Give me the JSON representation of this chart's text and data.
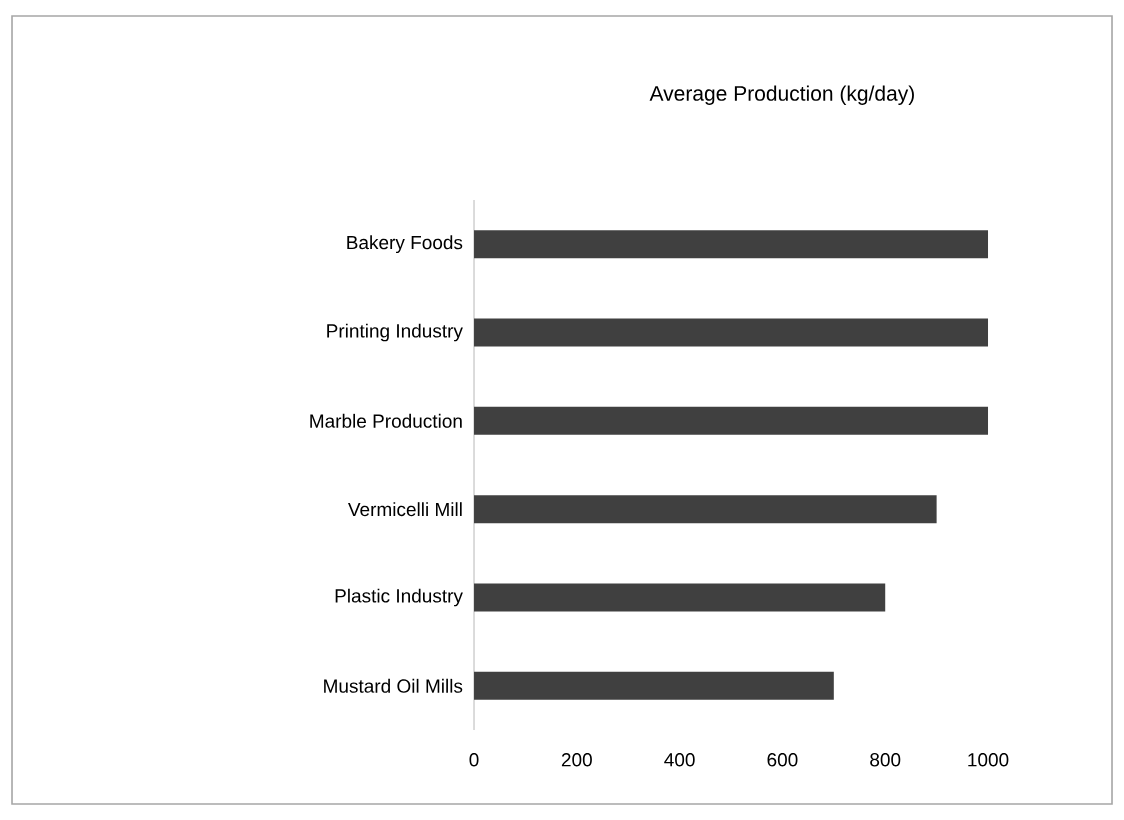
{
  "chart_data": {
    "type": "bar",
    "orientation": "horizontal",
    "title": "Average Production (kg/day)",
    "categories": [
      "Bakery Foods",
      "Printing Industry",
      "Marble Production",
      "Vermicelli Mill",
      "Plastic Industry",
      "Mustard Oil Mills"
    ],
    "values": [
      1000,
      1000,
      1000,
      900,
      800,
      700
    ],
    "color": "#404040",
    "xlim": [
      0,
      1000
    ],
    "xticks": [
      0,
      200,
      400,
      600,
      800,
      1000
    ]
  }
}
